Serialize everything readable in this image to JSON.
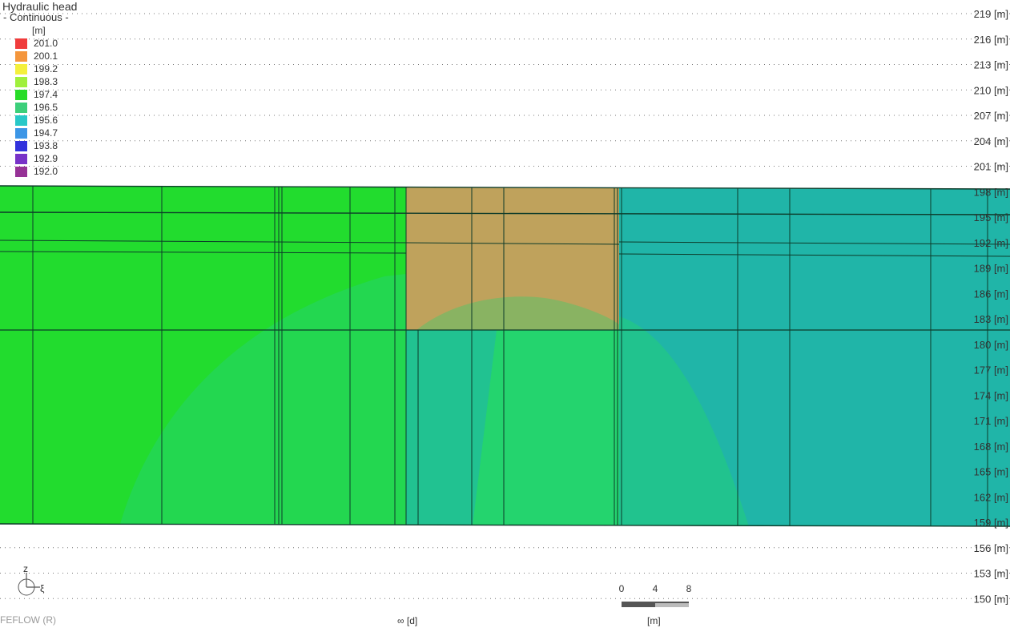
{
  "legend": {
    "title": "Hydraulic head",
    "mode": "- Continuous -",
    "unit": "[m]",
    "items": [
      {
        "label": "201.0",
        "color": "#f03c3c"
      },
      {
        "label": "200.1",
        "color": "#f4963c"
      },
      {
        "label": "199.2",
        "color": "#f4f03c"
      },
      {
        "label": "198.3",
        "color": "#a0f03c"
      },
      {
        "label": "197.4",
        "color": "#28dc28"
      },
      {
        "label": "196.5",
        "color": "#3ccf7a"
      },
      {
        "label": "195.6",
        "color": "#28c8c8"
      },
      {
        "label": "194.7",
        "color": "#3c96e6"
      },
      {
        "label": "193.8",
        "color": "#3232dc"
      },
      {
        "label": "192.9",
        "color": "#7832c8"
      },
      {
        "label": "192.0",
        "color": "#963296"
      }
    ]
  },
  "y_axis": {
    "labels": [
      "219 [m]",
      "216 [m]",
      "213 [m]",
      "210 [m]",
      "207 [m]",
      "204 [m]",
      "201 [m]",
      "198 [m]",
      "195 [m]",
      "192 [m]",
      "189 [m]",
      "186 [m]",
      "183 [m]",
      "180 [m]",
      "177 [m]",
      "174 [m]",
      "171 [m]",
      "168 [m]",
      "165 [m]",
      "162 [m]",
      "159 [m]",
      "156 [m]",
      "153 [m]",
      "150 [m]"
    ],
    "values": [
      219,
      216,
      213,
      210,
      207,
      204,
      201,
      198,
      195,
      192,
      189,
      186,
      183,
      180,
      177,
      174,
      171,
      168,
      165,
      162,
      159,
      156,
      153,
      150
    ]
  },
  "model": {
    "top_elevation": 198,
    "bottom_elevation": 159,
    "zone_colors": {
      "left": "#22dc2e",
      "right": "#20b5a8",
      "block": "#bfa25c",
      "plume": "#24d46e"
    }
  },
  "axis_indicator": {
    "up": "z",
    "right": "ξ"
  },
  "scale_bar": {
    "ticks": [
      "0",
      "4",
      "8"
    ],
    "unit": "[m]"
  },
  "time_readout": "∞ [d]",
  "brand": "FEFLOW (R)"
}
